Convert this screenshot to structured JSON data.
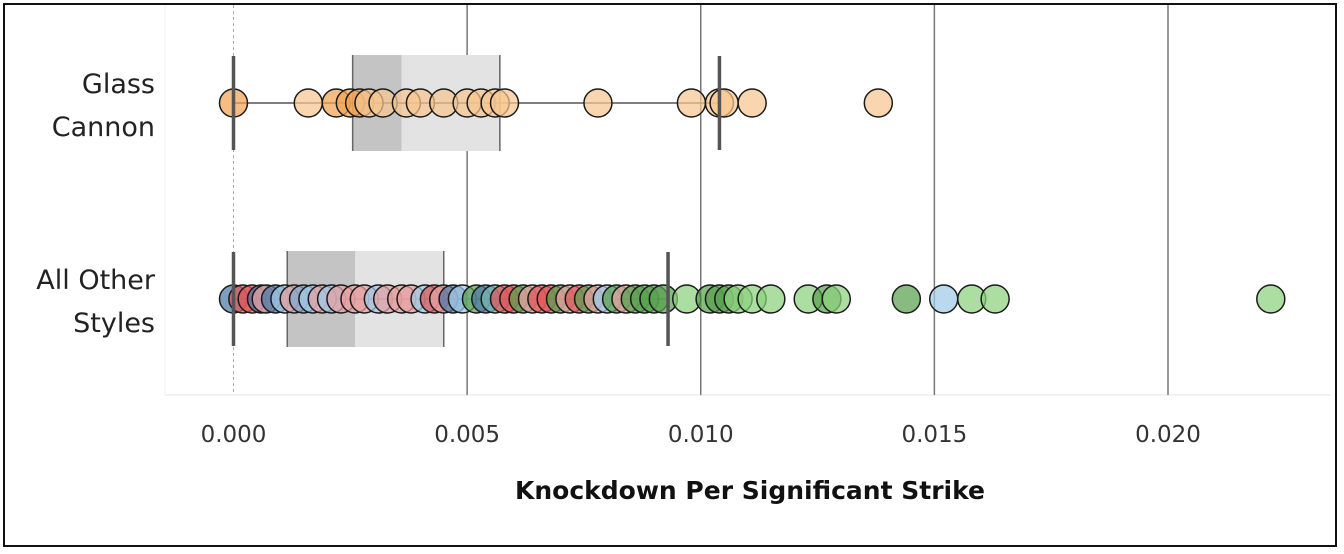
{
  "chart_data": {
    "type": "box-scatter",
    "xlabel": "Knockdown Per Significant Strike",
    "xlim": [
      -0.0014,
      0.0235
    ],
    "x_ticks": [
      0.0,
      0.005,
      0.01,
      0.015,
      0.02
    ],
    "x_tick_labels": [
      "0.000",
      "0.005",
      "0.010",
      "0.015",
      "0.020"
    ],
    "grid": "vertical",
    "categories": [
      {
        "label_lines": [
          "Glass",
          "Cannon"
        ],
        "box": {
          "whisker_low": 0.0,
          "q1": 0.00255,
          "median": 0.0036,
          "q3": 0.0057,
          "whisker_high": 0.0104
        },
        "points": [
          {
            "x": 0.0,
            "color": "#f1a354"
          },
          {
            "x": 0.0016,
            "color": "#f7c690"
          },
          {
            "x": 0.0022,
            "color": "#f1a354"
          },
          {
            "x": 0.0025,
            "color": "#f1a354"
          },
          {
            "x": 0.0027,
            "color": "#f1a354"
          },
          {
            "x": 0.0029,
            "color": "#f7c690"
          },
          {
            "x": 0.0032,
            "color": "#f7c690"
          },
          {
            "x": 0.0037,
            "color": "#f7c690"
          },
          {
            "x": 0.004,
            "color": "#f7c690"
          },
          {
            "x": 0.0045,
            "color": "#f7c690"
          },
          {
            "x": 0.005,
            "color": "#f7c690"
          },
          {
            "x": 0.0053,
            "color": "#f7c690"
          },
          {
            "x": 0.0056,
            "color": "#f7c690"
          },
          {
            "x": 0.0058,
            "color": "#f7c690"
          },
          {
            "x": 0.0078,
            "color": "#f7c690"
          },
          {
            "x": 0.0098,
            "color": "#f7c690"
          },
          {
            "x": 0.0104,
            "color": "#f7c690"
          },
          {
            "x": 0.0105,
            "color": "#f7c690"
          },
          {
            "x": 0.0111,
            "color": "#f7c690"
          },
          {
            "x": 0.0138,
            "color": "#f7c690"
          }
        ]
      },
      {
        "label_lines": [
          "All Other",
          "Styles"
        ],
        "box": {
          "whisker_low": 0.0,
          "q1": 0.00115,
          "median": 0.0026,
          "q3": 0.0045,
          "whisker_high": 0.0093
        },
        "points": [
          {
            "x": 0.0,
            "color": "#4e79a7"
          },
          {
            "x": 0.0002,
            "color": "#e15759"
          },
          {
            "x": 0.0004,
            "color": "#e15759"
          },
          {
            "x": 0.0006,
            "color": "#4e79a7"
          },
          {
            "x": 0.0007,
            "color": "#e8a1a2"
          },
          {
            "x": 0.0009,
            "color": "#4e79a7"
          },
          {
            "x": 0.0011,
            "color": "#a0cbe8"
          },
          {
            "x": 0.0013,
            "color": "#e8a1a2"
          },
          {
            "x": 0.0015,
            "color": "#7fa7cf"
          },
          {
            "x": 0.0017,
            "color": "#a0cbe8"
          },
          {
            "x": 0.0019,
            "color": "#e8a1a2"
          },
          {
            "x": 0.0021,
            "color": "#a0cbe8"
          },
          {
            "x": 0.0023,
            "color": "#e8a1a2"
          },
          {
            "x": 0.0026,
            "color": "#e8a1a2"
          },
          {
            "x": 0.0028,
            "color": "#e8a1a2"
          },
          {
            "x": 0.0031,
            "color": "#a0cbe8"
          },
          {
            "x": 0.0033,
            "color": "#e8a1a2"
          },
          {
            "x": 0.0036,
            "color": "#e8a1a2"
          },
          {
            "x": 0.0038,
            "color": "#e8a1a2"
          },
          {
            "x": 0.0041,
            "color": "#a0cbe8"
          },
          {
            "x": 0.0043,
            "color": "#e15759"
          },
          {
            "x": 0.0045,
            "color": "#e8a1a2"
          },
          {
            "x": 0.0047,
            "color": "#4e79a7"
          },
          {
            "x": 0.0049,
            "color": "#a0cbe8"
          },
          {
            "x": 0.0052,
            "color": "#59a14f"
          },
          {
            "x": 0.0054,
            "color": "#4e79a7"
          },
          {
            "x": 0.0056,
            "color": "#76b7b2"
          },
          {
            "x": 0.0058,
            "color": "#e15759"
          },
          {
            "x": 0.006,
            "color": "#e15759"
          },
          {
            "x": 0.0062,
            "color": "#59a14f"
          },
          {
            "x": 0.0064,
            "color": "#e8a1a2"
          },
          {
            "x": 0.0066,
            "color": "#e15759"
          },
          {
            "x": 0.0068,
            "color": "#e15759"
          },
          {
            "x": 0.007,
            "color": "#59a14f"
          },
          {
            "x": 0.0072,
            "color": "#e8a1a2"
          },
          {
            "x": 0.0074,
            "color": "#e15759"
          },
          {
            "x": 0.0076,
            "color": "#59a14f"
          },
          {
            "x": 0.0078,
            "color": "#e8a1a2"
          },
          {
            "x": 0.008,
            "color": "#a0cbe8"
          },
          {
            "x": 0.0082,
            "color": "#59a14f"
          },
          {
            "x": 0.0084,
            "color": "#e8a1a2"
          },
          {
            "x": 0.0086,
            "color": "#59a14f"
          },
          {
            "x": 0.0088,
            "color": "#59a14f"
          },
          {
            "x": 0.009,
            "color": "#59a14f"
          },
          {
            "x": 0.0092,
            "color": "#59a14f"
          },
          {
            "x": 0.0097,
            "color": "#8cd17d"
          },
          {
            "x": 0.0102,
            "color": "#59a14f"
          },
          {
            "x": 0.0104,
            "color": "#59a14f"
          },
          {
            "x": 0.0106,
            "color": "#59a14f"
          },
          {
            "x": 0.0108,
            "color": "#8cd17d"
          },
          {
            "x": 0.0111,
            "color": "#8cd17d"
          },
          {
            "x": 0.0115,
            "color": "#8cd17d"
          },
          {
            "x": 0.0123,
            "color": "#8cd17d"
          },
          {
            "x": 0.0127,
            "color": "#59a14f"
          },
          {
            "x": 0.0129,
            "color": "#8cd17d"
          },
          {
            "x": 0.0144,
            "color": "#59a14f"
          },
          {
            "x": 0.0152,
            "color": "#a0cbe8"
          },
          {
            "x": 0.0158,
            "color": "#8cd17d"
          },
          {
            "x": 0.0163,
            "color": "#8cd17d"
          },
          {
            "x": 0.0222,
            "color": "#8cd17d"
          }
        ]
      }
    ]
  }
}
